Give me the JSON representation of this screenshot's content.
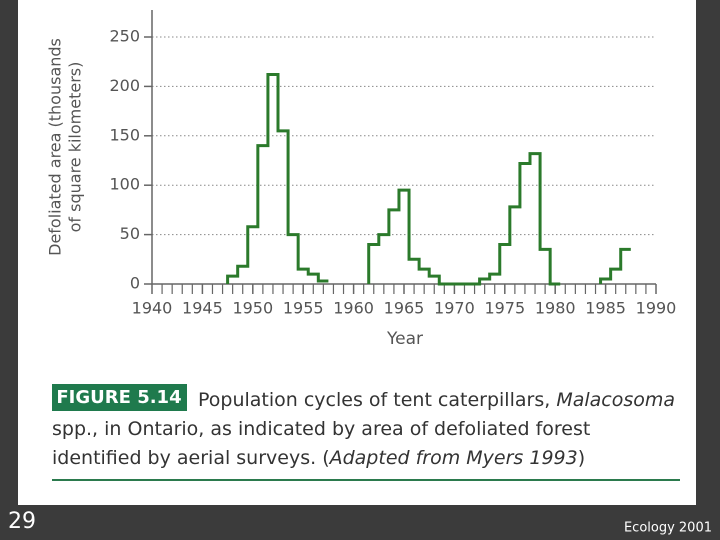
{
  "chart_data": {
    "type": "step",
    "y_label": [
      "Defoliated area (thousands",
      "of square kilometers)"
    ],
    "x_label": "Year",
    "x": [
      1948,
      1949,
      1950,
      1951,
      1952,
      1953,
      1954,
      1955,
      1956,
      1957,
      1958,
      1959,
      1960,
      1961,
      1962,
      1963,
      1964,
      1965,
      1966,
      1967,
      1968,
      1969,
      1970,
      1971,
      1972,
      1973,
      1974,
      1975,
      1976,
      1977,
      1978,
      1979,
      1980,
      1981,
      1982,
      1983,
      1984,
      1985,
      1986,
      1987
    ],
    "values": [
      8,
      18,
      58,
      140,
      212,
      155,
      50,
      15,
      10,
      3,
      null,
      null,
      null,
      null,
      40,
      50,
      75,
      95,
      25,
      15,
      8,
      0,
      0,
      0,
      0,
      5,
      10,
      40,
      78,
      122,
      132,
      35,
      0,
      null,
      null,
      null,
      null,
      5,
      15,
      35
    ],
    "color": "#2b7a2b",
    "xlim": [
      1940,
      1990
    ],
    "xticks": [
      1940,
      1945,
      1950,
      1955,
      1960,
      1965,
      1970,
      1975,
      1980,
      1985,
      1990
    ],
    "ylim": [
      0,
      250
    ],
    "yticks": [
      0,
      50,
      100,
      150,
      200,
      250
    ],
    "grid": true
  },
  "figure_label": "FIGURE 5.14",
  "caption": [
    [
      {
        "text": "Population cycles of tent caterpillars, ",
        "italic": false
      },
      {
        "text": "Malacosoma",
        "italic": true
      }
    ],
    [
      {
        "text": "spp., in Ontario, as indicated by area of defoliated forest",
        "italic": false
      }
    ],
    [
      {
        "text": "identified by aerial surveys. (",
        "italic": false
      },
      {
        "text": "Adapted from Myers 1993",
        "italic": true
      },
      {
        "text": ")",
        "italic": false
      }
    ]
  ],
  "slide_number": "29",
  "footer": "Ecology 2001"
}
